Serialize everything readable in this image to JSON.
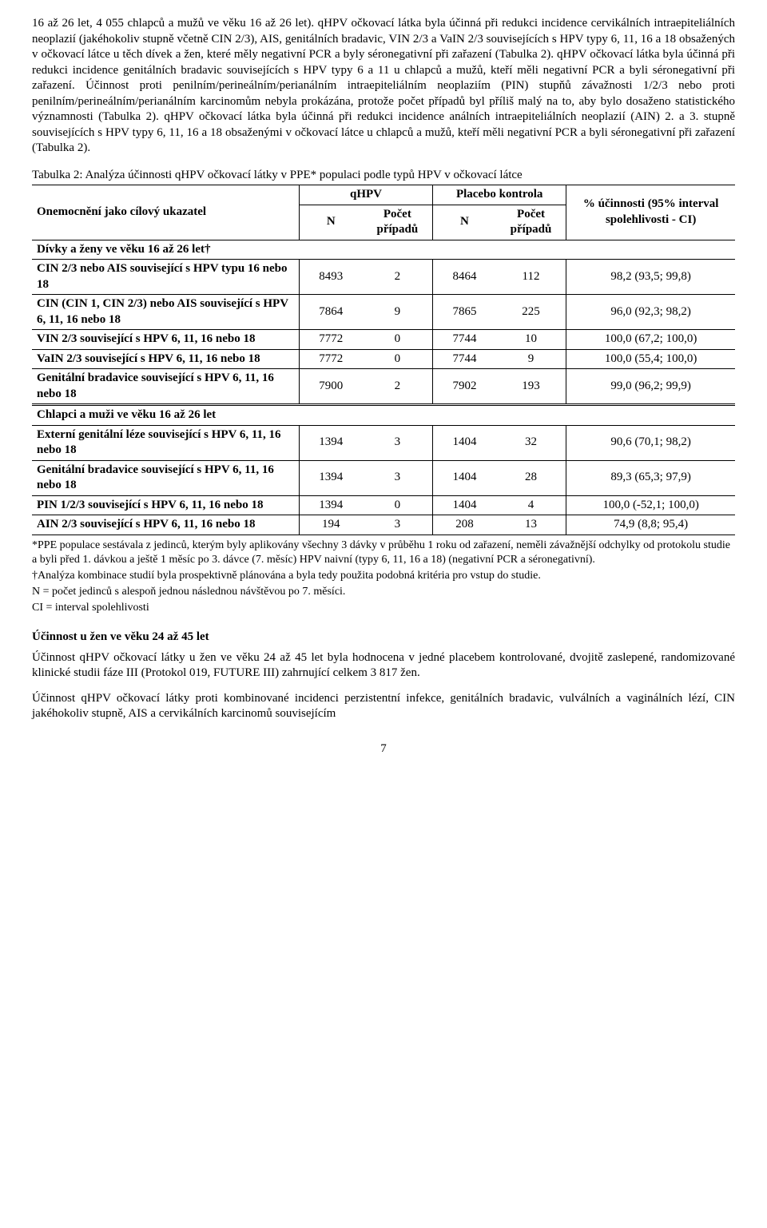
{
  "para1": "16 až 26 let, 4 055 chlapců a mužů ve věku 16 až 26 let). qHPV očkovací látka byla účinná při redukci incidence cervikálních intraepiteliálních neoplazií (jakéhokoliv stupně včetně CIN 2/3), AIS, genitálních bradavic, VIN 2/3 a VaIN 2/3 souvisejících s HPV typy 6, 11, 16 a 18 obsažených v očkovací látce u těch dívek a žen, které měly negativní PCR a byly séronegativní při zařazení (Tabulka 2). qHPV očkovací látka byla účinná při redukci incidence genitálních bradavic souvisejících s HPV typy 6 a 11 u chlapců a mužů, kteří měli negativní PCR a byli séronegativní při zařazení. Účinnost proti penilním/perineálním/perianálním intraepiteliálním neoplaziím (PIN) stupňů závažnosti 1/2/3 nebo proti penilním/perineálním/perianálním karcinomům nebyla prokázána, protože počet případů byl příliš malý na to, aby bylo dosaženo statistického významnosti (Tabulka 2). qHPV očkovací látka byla účinná při redukci incidence análních intraepiteliálních neoplazií (AIN) 2. a 3. stupně souvisejících s HPV typy 6, 11, 16 a 18 obsaženými v očkovací látce u chlapců a mužů, kteří měli negativní PCR a byli séronegativní při zařazení (Tabulka 2).",
  "table_caption": "Tabulka 2: Analýza účinnosti qHPV očkovací látky v PPE* populaci podle typů HPV v očkovací látce",
  "headers": {
    "col0": "Onemocnění jako cílový ukazatel",
    "qhpv": "qHPV",
    "placebo": "Placebo kontrola",
    "eff": "% účinnosti (95% interval spolehlivosti - CI)",
    "N": "N",
    "cases": "Počet případů"
  },
  "section1": "Dívky a ženy ve věku 16 až 26 let†",
  "rows1": [
    {
      "label": "CIN 2/3 nebo AIS související s HPV typu 16 nebo 18",
      "n1": "8493",
      "c1": "2",
      "n2": "8464",
      "c2": "112",
      "eff": "98,2 (93,5; 99,8)"
    },
    {
      "label": "CIN (CIN 1, CIN 2/3) nebo AIS související s HPV 6, 11, 16 nebo 18",
      "n1": "7864",
      "c1": "9",
      "n2": "7865",
      "c2": "225",
      "eff": "96,0 (92,3; 98,2)"
    },
    {
      "label": "VIN 2/3 související s HPV 6, 11, 16 nebo 18",
      "n1": "7772",
      "c1": "0",
      "n2": "7744",
      "c2": "10",
      "eff": "100,0 (67,2; 100,0)"
    },
    {
      "label": "VaIN 2/3 související s HPV 6, 11, 16 nebo 18",
      "n1": "7772",
      "c1": "0",
      "n2": "7744",
      "c2": "9",
      "eff": "100,0 (55,4; 100,0)"
    },
    {
      "label": "Genitální bradavice související s HPV 6, 11, 16 nebo 18",
      "n1": "7900",
      "c1": "2",
      "n2": "7902",
      "c2": "193",
      "eff": "99,0 (96,2; 99,9)"
    }
  ],
  "section2": "Chlapci a muži ve věku 16 až 26 let",
  "rows2": [
    {
      "label": "Externí genitální léze související s HPV 6, 11, 16 nebo 18",
      "n1": "1394",
      "c1": "3",
      "n2": "1404",
      "c2": "32",
      "eff": "90,6 (70,1; 98,2)"
    },
    {
      "label": "Genitální bradavice související s HPV 6, 11, 16 nebo 18",
      "n1": "1394",
      "c1": "3",
      "n2": "1404",
      "c2": "28",
      "eff": "89,3 (65,3; 97,9)"
    },
    {
      "label": "PIN 1/2/3 související s HPV 6, 11, 16 nebo 18",
      "n1": "1394",
      "c1": "0",
      "n2": "1404",
      "c2": "4",
      "eff": "100,0 (-52,1; 100,0)"
    },
    {
      "label": "AIN 2/3 související s HPV 6, 11, 16 nebo 18",
      "n1": "194",
      "c1": "3",
      "n2": "208",
      "c2": "13",
      "eff": "74,9 (8,8; 95,4)"
    }
  ],
  "footnotes": {
    "f1": "*PPE populace sestávala z jedinců, kterým byly aplikovány všechny 3 dávky v průběhu 1 roku od zařazení, neměli závažnější odchylky od protokolu studie a byli před 1. dávkou a ještě 1 měsíc po 3. dávce (7. měsíc) HPV naivní (typy 6, 11, 16 a 18) (negativní PCR a séronegativní).",
    "f2": "†Analýza kombinace studií byla prospektivně plánována a byla tedy použita podobná kritéria pro vstup do studie.",
    "f3": "N = počet jedinců s alespoň jednou následnou návštěvou po 7. měsíci.",
    "f4": "CI = interval spolehlivosti"
  },
  "section_h": "Účinnost u žen ve věku 24 až 45 let",
  "para2": "Účinnost qHPV očkovací látky u žen ve věku 24 až 45 let byla hodnocena v jedné placebem kontrolované, dvojitě zaslepené, randomizované klinické studii fáze III (Protokol 019, FUTURE III) zahrnující celkem 3 817 žen.",
  "para3": "Účinnost qHPV očkovací látky proti kombinované incidenci perzistentní infekce, genitálních bradavic, vulválních a vaginálních lézí, CIN jakéhokoliv stupně, AIS a cervikálních karcinomů souvisejícím",
  "page": "7"
}
